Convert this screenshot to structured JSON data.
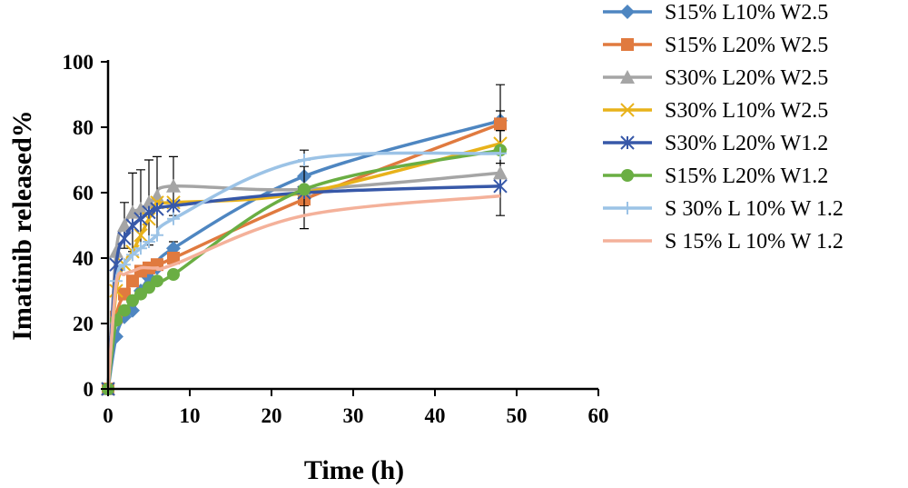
{
  "chart_data": {
    "type": "line",
    "xlabel": "Time (h)",
    "ylabel": "Imatinib released%",
    "xlim": [
      0,
      60
    ],
    "ylim": [
      0,
      100
    ],
    "xticks": [
      "0",
      "10",
      "20",
      "30",
      "40",
      "50",
      "60"
    ],
    "yticks": [
      "0",
      "20",
      "40",
      "60",
      "80",
      "100"
    ],
    "grid": false,
    "legend_position": "right",
    "x": [
      0,
      1,
      2,
      3,
      4,
      5,
      6,
      8,
      24,
      48
    ],
    "series": [
      {
        "name": "S15% L10% W2.5",
        "color": "#4E86C1",
        "marker": "diamond",
        "values": [
          0,
          16,
          22,
          24,
          30,
          34,
          37,
          43,
          65,
          82
        ],
        "error": [
          0,
          0,
          0,
          0,
          0,
          0,
          0,
          2,
          3,
          3
        ]
      },
      {
        "name": "S15% L20% W2.5",
        "color": "#E07A3F",
        "marker": "square",
        "values": [
          0,
          22,
          29,
          33,
          36,
          37,
          38,
          40,
          58,
          81
        ],
        "error": [
          0,
          0,
          0,
          0,
          0,
          0,
          0,
          0,
          2,
          12
        ]
      },
      {
        "name": "S30% L20% W2.5",
        "color": "#A5A5A5",
        "marker": "triangle",
        "values": [
          0,
          42,
          50,
          54,
          55,
          57,
          59,
          62,
          61,
          66
        ],
        "error": [
          0,
          0,
          7,
          12,
          12,
          13,
          12,
          9,
          12,
          13
        ]
      },
      {
        "name": "S30% L10% W2.5",
        "color": "#E8B21A",
        "marker": "x",
        "values": [
          0,
          30,
          38,
          42,
          47,
          52,
          57,
          57,
          60,
          75
        ],
        "error": [
          0,
          0,
          0,
          0,
          0,
          0,
          0,
          0,
          0,
          0
        ]
      },
      {
        "name": "S30% L20% W1.2",
        "color": "#3758A8",
        "marker": "star",
        "values": [
          0,
          38,
          46,
          50,
          52,
          54,
          55,
          56,
          60,
          62
        ],
        "error": [
          0,
          0,
          0,
          0,
          0,
          0,
          0,
          0,
          0,
          0
        ]
      },
      {
        "name": "S15% L20% W1.2",
        "color": "#6AAE43",
        "marker": "circle",
        "values": [
          0,
          21,
          24,
          27,
          29,
          31,
          33,
          35,
          61,
          73
        ],
        "error": [
          0,
          0,
          0,
          0,
          0,
          0,
          0,
          0,
          0,
          0
        ]
      },
      {
        "name": "S 30% L 10% W 1.2",
        "color": "#9CC3E6",
        "marker": "plus",
        "values": [
          0,
          33,
          38,
          41,
          43,
          45,
          47,
          52,
          70,
          72
        ],
        "error": [
          0,
          0,
          0,
          0,
          0,
          0,
          0,
          0,
          0,
          0
        ]
      },
      {
        "name": "S 15% L 10% W 1.2",
        "color": "#F4B19A",
        "marker": "none",
        "values": [
          0,
          32,
          35,
          36,
          37,
          37,
          37,
          38,
          53,
          59
        ],
        "error": [
          0,
          0,
          0,
          0,
          0,
          0,
          0,
          0,
          0,
          0
        ]
      }
    ]
  }
}
